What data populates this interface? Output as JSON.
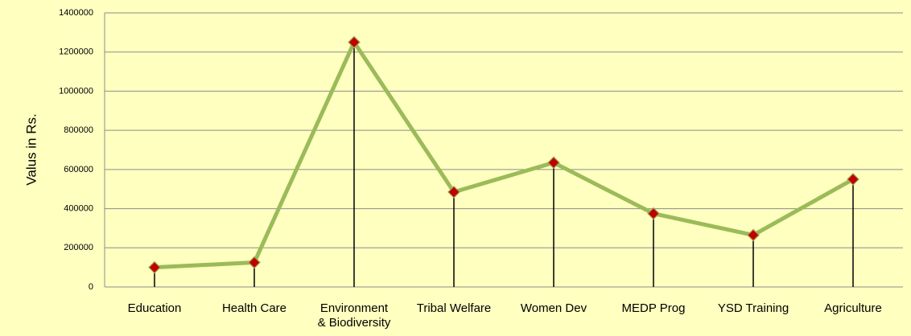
{
  "chart_data": {
    "type": "line",
    "y_label": "Valus in Rs.",
    "categories": [
      "Education",
      "Health Care",
      "Environment & Biodiversity",
      "Tribal Welfare",
      "Women Dev",
      "MEDP Prog",
      "YSD Training",
      "Agriculture"
    ],
    "series": [
      {
        "name": "Value",
        "color": "#9bbb59",
        "marker_color": "#c00000",
        "values": [
          100000,
          125000,
          1250000,
          485000,
          635000,
          375000,
          265000,
          550000
        ]
      }
    ],
    "ylim": [
      0,
      1400000
    ],
    "yticks": [
      0,
      200000,
      400000,
      600000,
      800000,
      1000000,
      1200000,
      1400000
    ],
    "grid": true,
    "drop_lines": true
  }
}
